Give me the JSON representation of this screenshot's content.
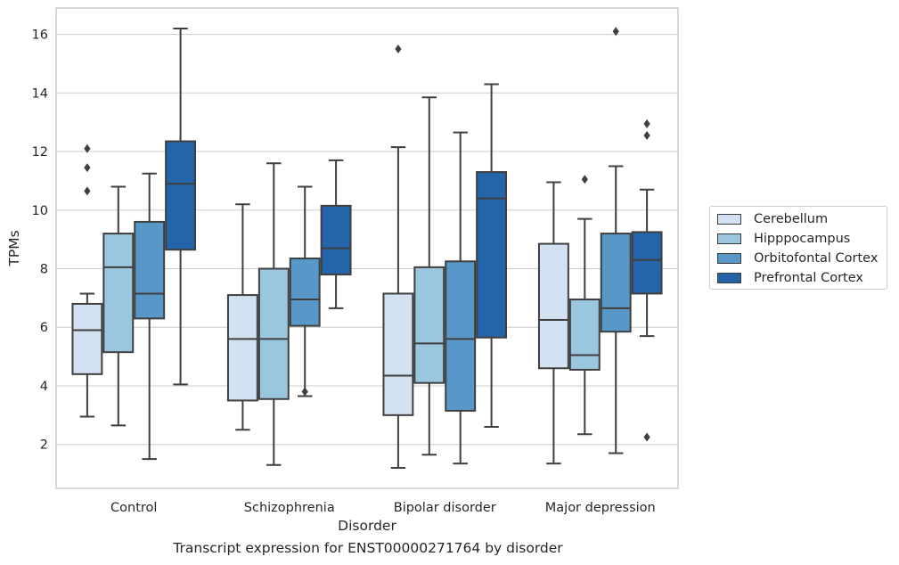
{
  "caption": "Transcript expression for ENST00000271764 by disorder",
  "chart_data": {
    "type": "box",
    "xlabel": "Disorder",
    "ylabel": "TPMs",
    "ylim": [
      0.5,
      16.9
    ],
    "yticks": [
      2,
      4,
      6,
      8,
      10,
      12,
      14,
      16
    ],
    "grid": true,
    "legend_position": "right",
    "categories": [
      "Control",
      "Schizophrenia",
      "Bipolar disorder",
      "Major depression"
    ],
    "series": [
      {
        "name": "Cerebellum",
        "color": "#d2e2f2",
        "boxes": [
          {
            "whisker_low": 2.95,
            "q1": 4.4,
            "median": 5.9,
            "q3": 6.8,
            "whisker_high": 7.15,
            "outliers": [
              10.65,
              11.45,
              12.1
            ]
          },
          {
            "whisker_low": 2.5,
            "q1": 3.5,
            "median": 5.6,
            "q3": 7.1,
            "whisker_high": 10.2,
            "outliers": []
          },
          {
            "whisker_low": 1.2,
            "q1": 3.0,
            "median": 4.35,
            "q3": 7.15,
            "whisker_high": 12.15,
            "outliers": [
              15.5
            ]
          },
          {
            "whisker_low": 1.35,
            "q1": 4.6,
            "median": 6.25,
            "q3": 8.85,
            "whisker_high": 10.95,
            "outliers": []
          }
        ]
      },
      {
        "name": "Hipppocampus",
        "color": "#9ac6df",
        "boxes": [
          {
            "whisker_low": 2.65,
            "q1": 5.15,
            "median": 8.05,
            "q3": 9.2,
            "whisker_high": 10.8,
            "outliers": []
          },
          {
            "whisker_low": 1.3,
            "q1": 3.55,
            "median": 5.6,
            "q3": 8.0,
            "whisker_high": 11.6,
            "outliers": []
          },
          {
            "whisker_low": 1.65,
            "q1": 4.1,
            "median": 5.45,
            "q3": 8.05,
            "whisker_high": 13.85,
            "outliers": []
          },
          {
            "whisker_low": 2.35,
            "q1": 4.55,
            "median": 5.05,
            "q3": 6.95,
            "whisker_high": 9.7,
            "outliers": [
              11.05
            ]
          }
        ]
      },
      {
        "name": "Orbitofontal Cortex",
        "color": "#5798c8",
        "boxes": [
          {
            "whisker_low": 1.5,
            "q1": 6.3,
            "median": 7.15,
            "q3": 9.6,
            "whisker_high": 11.25,
            "outliers": []
          },
          {
            "whisker_low": 3.65,
            "q1": 6.05,
            "median": 6.95,
            "q3": 8.35,
            "whisker_high": 10.8,
            "outliers": [
              3.8
            ]
          },
          {
            "whisker_low": 1.35,
            "q1": 3.15,
            "median": 5.6,
            "q3": 8.25,
            "whisker_high": 12.65,
            "outliers": []
          },
          {
            "whisker_low": 1.7,
            "q1": 5.85,
            "median": 6.65,
            "q3": 9.2,
            "whisker_high": 11.5,
            "outliers": [
              16.1
            ]
          }
        ]
      },
      {
        "name": "Prefrontal Cortex",
        "color": "#2464a8",
        "boxes": [
          {
            "whisker_low": 4.05,
            "q1": 8.65,
            "median": 10.9,
            "q3": 12.35,
            "whisker_high": 16.2,
            "outliers": []
          },
          {
            "whisker_low": 6.65,
            "q1": 7.8,
            "median": 8.7,
            "q3": 10.15,
            "whisker_high": 11.7,
            "outliers": []
          },
          {
            "whisker_low": 2.6,
            "q1": 5.65,
            "median": 10.4,
            "q3": 11.3,
            "whisker_high": 14.3,
            "outliers": []
          },
          {
            "whisker_low": 5.7,
            "q1": 7.15,
            "median": 8.3,
            "q3": 9.25,
            "whisker_high": 10.7,
            "outliers": [
              2.25,
              12.55,
              12.95
            ]
          }
        ]
      }
    ]
  }
}
